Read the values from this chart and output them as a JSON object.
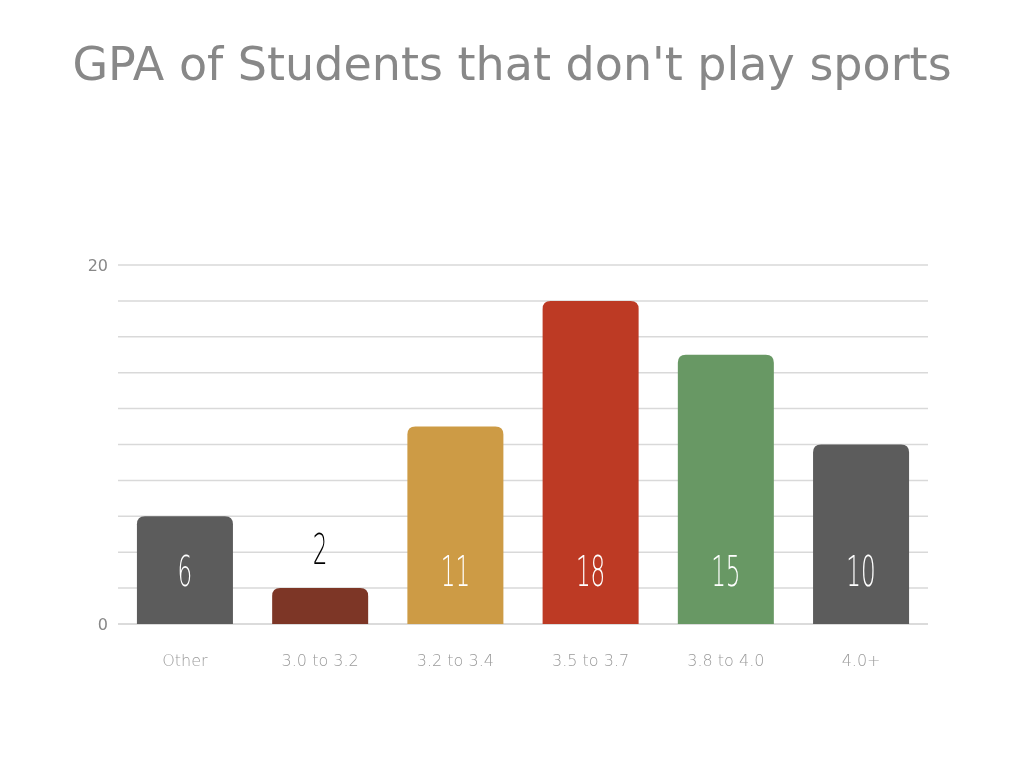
{
  "chart_data": {
    "type": "bar",
    "title": "GPA of Students that don't play sports",
    "categories": [
      "Other",
      "3.0 to 3.2",
      "3.2 to 3.4",
      "3.5 to 3.7",
      "3.8 to 4.0",
      "4.0+"
    ],
    "values": [
      6,
      2,
      11,
      18,
      15,
      10
    ],
    "colors": [
      "#5c5c5c",
      "#7d3626",
      "#cd9b45",
      "#bd3a24",
      "#689864",
      "#5c5c5c"
    ],
    "ylim": [
      0,
      20
    ],
    "yticks": [
      0,
      {
        "value": 2,
        "label": null
      },
      {
        "value": 4,
        "label": null
      },
      {
        "value": 6,
        "label": null
      },
      {
        "value": 8,
        "label": null
      },
      {
        "value": 10,
        "label": null
      },
      {
        "value": 12,
        "label": null
      },
      {
        "value": 14,
        "label": null
      },
      {
        "value": 16,
        "label": null
      },
      {
        "value": 18,
        "label": null
      },
      20
    ],
    "grid": "y",
    "data_labels": true
  }
}
